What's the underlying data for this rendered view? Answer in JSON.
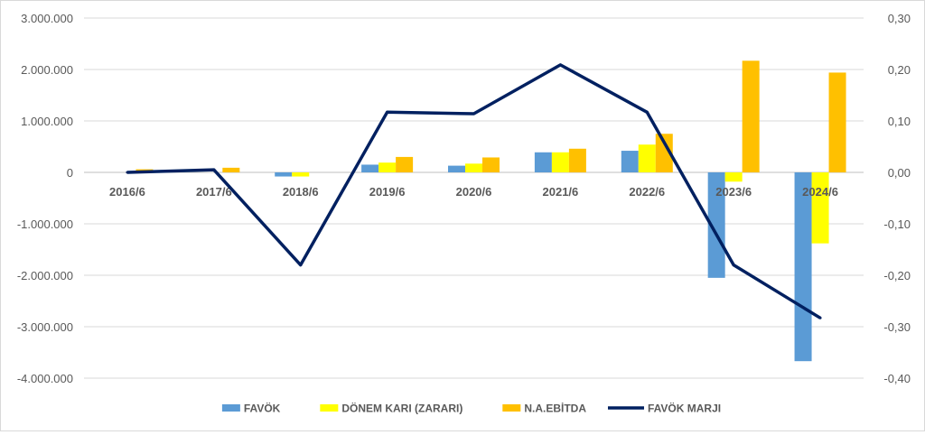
{
  "chart_data": {
    "type": "bar",
    "categories": [
      "2016/6",
      "2017/6",
      "2018/6",
      "2019/6",
      "2020/6",
      "2021/6",
      "2022/6",
      "2023/6",
      "2024/6"
    ],
    "series": [
      {
        "name": "FAVÖK",
        "type": "bar",
        "axis": "left",
        "color": "#5b9bd5",
        "values": [
          0,
          0,
          -80000,
          150000,
          130000,
          390000,
          420000,
          -2050000,
          -3670000
        ]
      },
      {
        "name": "DÖNEM KARI (ZARARI)",
        "type": "bar",
        "axis": "left",
        "color": "#ffff00",
        "values": [
          0,
          0,
          -80000,
          190000,
          170000,
          390000,
          540000,
          -180000,
          -1380000
        ]
      },
      {
        "name": "N.A.EBİTDA",
        "type": "bar",
        "axis": "left",
        "color": "#ffc000",
        "values": [
          60000,
          90000,
          0,
          300000,
          290000,
          460000,
          750000,
          2170000,
          1940000
        ]
      },
      {
        "name": "FAVÖK MARJI",
        "type": "line",
        "axis": "right",
        "color": "#002060",
        "values": [
          0.0,
          0.005,
          -0.18,
          0.117,
          0.114,
          0.209,
          0.117,
          -0.18,
          -0.283
        ]
      }
    ],
    "y_left": {
      "min": -4000000,
      "max": 3000000,
      "ticks": [
        3000000,
        2000000,
        1000000,
        0,
        -1000000,
        -2000000,
        -3000000,
        -4000000
      ],
      "tick_labels": [
        "3.000.000",
        "2.000.000",
        "1.000.000",
        "0",
        "-1.000.000",
        "-2.000.000",
        "-3.000.000",
        "-4.000.000"
      ]
    },
    "y_right": {
      "min": -0.4,
      "max": 0.3,
      "ticks": [
        0.3,
        0.2,
        0.1,
        0.0,
        -0.1,
        -0.2,
        -0.3,
        -0.4
      ],
      "tick_labels": [
        "0,30",
        "0,20",
        "0,10",
        "0,00",
        "-0,10",
        "-0,20",
        "-0,30",
        "-0,40"
      ]
    },
    "grid": "horizontal",
    "legend": "bottom",
    "title": "",
    "xlabel": "",
    "ylabel": ""
  }
}
